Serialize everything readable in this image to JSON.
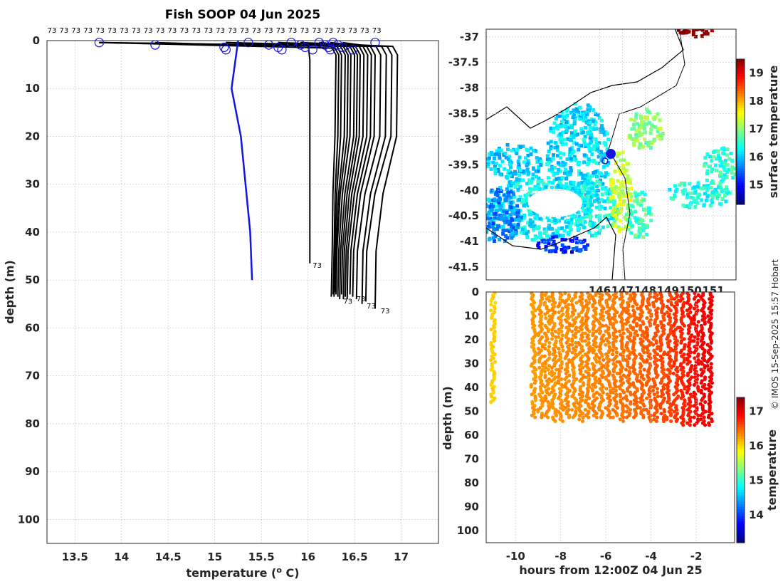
{
  "credit": "© IMOS 15-Sep-2025 15:57 Hobart",
  "chart_data": [
    {
      "type": "line",
      "name": "profiles",
      "title": "Fish SOOP 04 Jun 2025",
      "xlabel": "temperature (",
      "xlabel_sup": "o",
      "xlabel_end": " C)",
      "ylabel": "depth (m)",
      "xlim": [
        13.2,
        17.4
      ],
      "ylim": [
        0,
        105
      ],
      "xticks": [
        13.5,
        14,
        14.5,
        15,
        15.5,
        16,
        16.5,
        17
      ],
      "yticks": [
        0,
        10,
        20,
        30,
        40,
        50,
        60,
        70,
        80,
        90,
        100
      ],
      "top_labels": [
        "73",
        "73",
        "73",
        "73",
        "73",
        "73",
        "73",
        "73",
        "73",
        "73",
        "73",
        "73",
        "73",
        "73",
        "73",
        "73",
        "73",
        "73",
        "73",
        "73",
        "73",
        "73",
        "73",
        "73",
        "73",
        "73",
        "73",
        "73"
      ],
      "end_labels": [
        {
          "text": "73",
          "t": 16.05,
          "d": 47
        },
        {
          "text": "73",
          "t": 16.38,
          "d": 54.5
        },
        {
          "text": "73",
          "t": 16.52,
          "d": 54
        },
        {
          "text": "73",
          "t": 16.63,
          "d": 55.5
        },
        {
          "text": "73",
          "t": 16.78,
          "d": 56.5
        }
      ],
      "blue_profile": {
        "temp": [
          15.25,
          15.18,
          15.28,
          15.38,
          15.4
        ],
        "depth": [
          0,
          10,
          20,
          40,
          50
        ]
      },
      "surface_markers": [
        13.76,
        14.36,
        15.1,
        15.12,
        15.36,
        15.58,
        15.68,
        15.72,
        15.82,
        15.92,
        15.97,
        16.05,
        16.12,
        16.18,
        16.22,
        16.24,
        16.27,
        16.32,
        16.37,
        16.48,
        16.72
      ],
      "black_profiles": [
        {
          "bottom_temp": 16.02,
          "max_depth": 46.5,
          "max_temp": 16.02
        },
        {
          "bottom_temp": 16.25,
          "max_depth": 53.5,
          "max_temp": 16.3
        },
        {
          "bottom_temp": 16.27,
          "max_depth": 53,
          "max_temp": 16.33
        },
        {
          "bottom_temp": 16.28,
          "max_depth": 53.5,
          "max_temp": 16.36
        },
        {
          "bottom_temp": 16.29,
          "max_depth": 52.5,
          "max_temp": 16.4
        },
        {
          "bottom_temp": 16.3,
          "max_depth": 53,
          "max_temp": 16.43
        },
        {
          "bottom_temp": 16.32,
          "max_depth": 53.5,
          "max_temp": 16.46
        },
        {
          "bottom_temp": 16.34,
          "max_depth": 54,
          "max_temp": 16.5
        },
        {
          "bottom_temp": 16.36,
          "max_depth": 53,
          "max_temp": 16.53
        },
        {
          "bottom_temp": 16.38,
          "max_depth": 54,
          "max_temp": 16.56
        },
        {
          "bottom_temp": 16.4,
          "max_depth": 53.5,
          "max_temp": 16.6
        },
        {
          "bottom_temp": 16.42,
          "max_depth": 54,
          "max_temp": 16.64
        },
        {
          "bottom_temp": 16.45,
          "max_depth": 53,
          "max_temp": 16.68
        },
        {
          "bottom_temp": 16.48,
          "max_depth": 53.5,
          "max_temp": 16.72
        },
        {
          "bottom_temp": 16.52,
          "max_depth": 54,
          "max_temp": 16.78
        },
        {
          "bottom_temp": 16.58,
          "max_depth": 55,
          "max_temp": 16.84
        },
        {
          "bottom_temp": 16.62,
          "max_depth": 54.5,
          "max_temp": 16.9
        },
        {
          "bottom_temp": 16.72,
          "max_depth": 56,
          "max_temp": 16.96
        }
      ]
    },
    {
      "type": "heatmap",
      "name": "map",
      "colorbar_label": "surface temperature",
      "clim": [
        14.3,
        19.5
      ],
      "yticks": [
        "-37",
        "-37.5",
        "-38",
        "-38.5",
        "-39",
        "-39.5",
        "-40",
        "-40.5",
        "-41",
        "-41.5"
      ],
      "ytick_values": [
        -37,
        -37.5,
        -38,
        -38.5,
        -39,
        -39.5,
        -40,
        -40.5,
        -41,
        -41.5
      ],
      "ylim": [
        -41.75,
        -36.85
      ],
      "xlim": [
        141,
        152
      ],
      "xticks": [
        "146",
        "147",
        "148",
        "149",
        "150",
        "151"
      ],
      "xtick_values": [
        146,
        147,
        148,
        149,
        150,
        151
      ],
      "cbar_ticks": [
        "15",
        "16",
        "17",
        "18",
        "19"
      ],
      "cbar_tick_values": [
        15,
        16,
        17,
        18,
        19
      ]
    },
    {
      "type": "scatter",
      "name": "section",
      "xlabel": "hours from 12:00Z 04 Jun 25",
      "ylabel": "depth (m)",
      "colorbar_label": "temperature",
      "xlim": [
        -11.3,
        -0.3
      ],
      "ylim": [
        0,
        105
      ],
      "xticks": [
        -10,
        -8,
        -6,
        -4,
        -2
      ],
      "yticks": [
        0,
        10,
        20,
        30,
        40,
        50,
        60,
        70,
        80,
        90,
        100
      ],
      "clim": [
        13.2,
        17.4
      ],
      "cbar_ticks": [
        14,
        15,
        16,
        17
      ],
      "casts": [
        {
          "h": -11.0,
          "max_depth": 46.5,
          "temp": 16.02
        },
        {
          "h": -9.2,
          "max_depth": 52.5,
          "temp": 16.25
        },
        {
          "h": -8.9,
          "max_depth": 53,
          "temp": 16.27
        },
        {
          "h": -8.6,
          "max_depth": 53,
          "temp": 16.28
        },
        {
          "h": -8.3,
          "max_depth": 53.5,
          "temp": 16.28
        },
        {
          "h": -8.0,
          "max_depth": 54,
          "temp": 16.29
        },
        {
          "h": -7.7,
          "max_depth": 53,
          "temp": 16.3
        },
        {
          "h": -7.4,
          "max_depth": 53,
          "temp": 16.3
        },
        {
          "h": -7.1,
          "max_depth": 53.5,
          "temp": 16.31
        },
        {
          "h": -6.8,
          "max_depth": 53,
          "temp": 16.32
        },
        {
          "h": -6.5,
          "max_depth": 52.5,
          "temp": 16.33
        },
        {
          "h": -6.2,
          "max_depth": 53,
          "temp": 16.34
        },
        {
          "h": -5.9,
          "max_depth": 53,
          "temp": 16.36
        },
        {
          "h": -5.6,
          "max_depth": 53,
          "temp": 16.38
        },
        {
          "h": -5.3,
          "max_depth": 53.5,
          "temp": 16.4
        },
        {
          "h": -5.0,
          "max_depth": 53,
          "temp": 16.42
        },
        {
          "h": -4.7,
          "max_depth": 53,
          "temp": 16.45
        },
        {
          "h": -4.4,
          "max_depth": 53,
          "temp": 16.48
        },
        {
          "h": -4.1,
          "max_depth": 53.5,
          "temp": 16.5
        },
        {
          "h": -3.8,
          "max_depth": 54,
          "temp": 16.54
        },
        {
          "h": -3.5,
          "max_depth": 54,
          "temp": 16.58
        },
        {
          "h": -3.2,
          "max_depth": 54,
          "temp": 16.62
        },
        {
          "h": -2.9,
          "max_depth": 54.5,
          "temp": 16.68
        },
        {
          "h": -2.6,
          "max_depth": 55,
          "temp": 16.74
        },
        {
          "h": -2.3,
          "max_depth": 55,
          "temp": 16.8
        },
        {
          "h": -2.0,
          "max_depth": 55.5,
          "temp": 16.86
        },
        {
          "h": -1.7,
          "max_depth": 56,
          "temp": 16.9
        },
        {
          "h": -1.4,
          "max_depth": 56,
          "temp": 16.95
        }
      ]
    }
  ]
}
